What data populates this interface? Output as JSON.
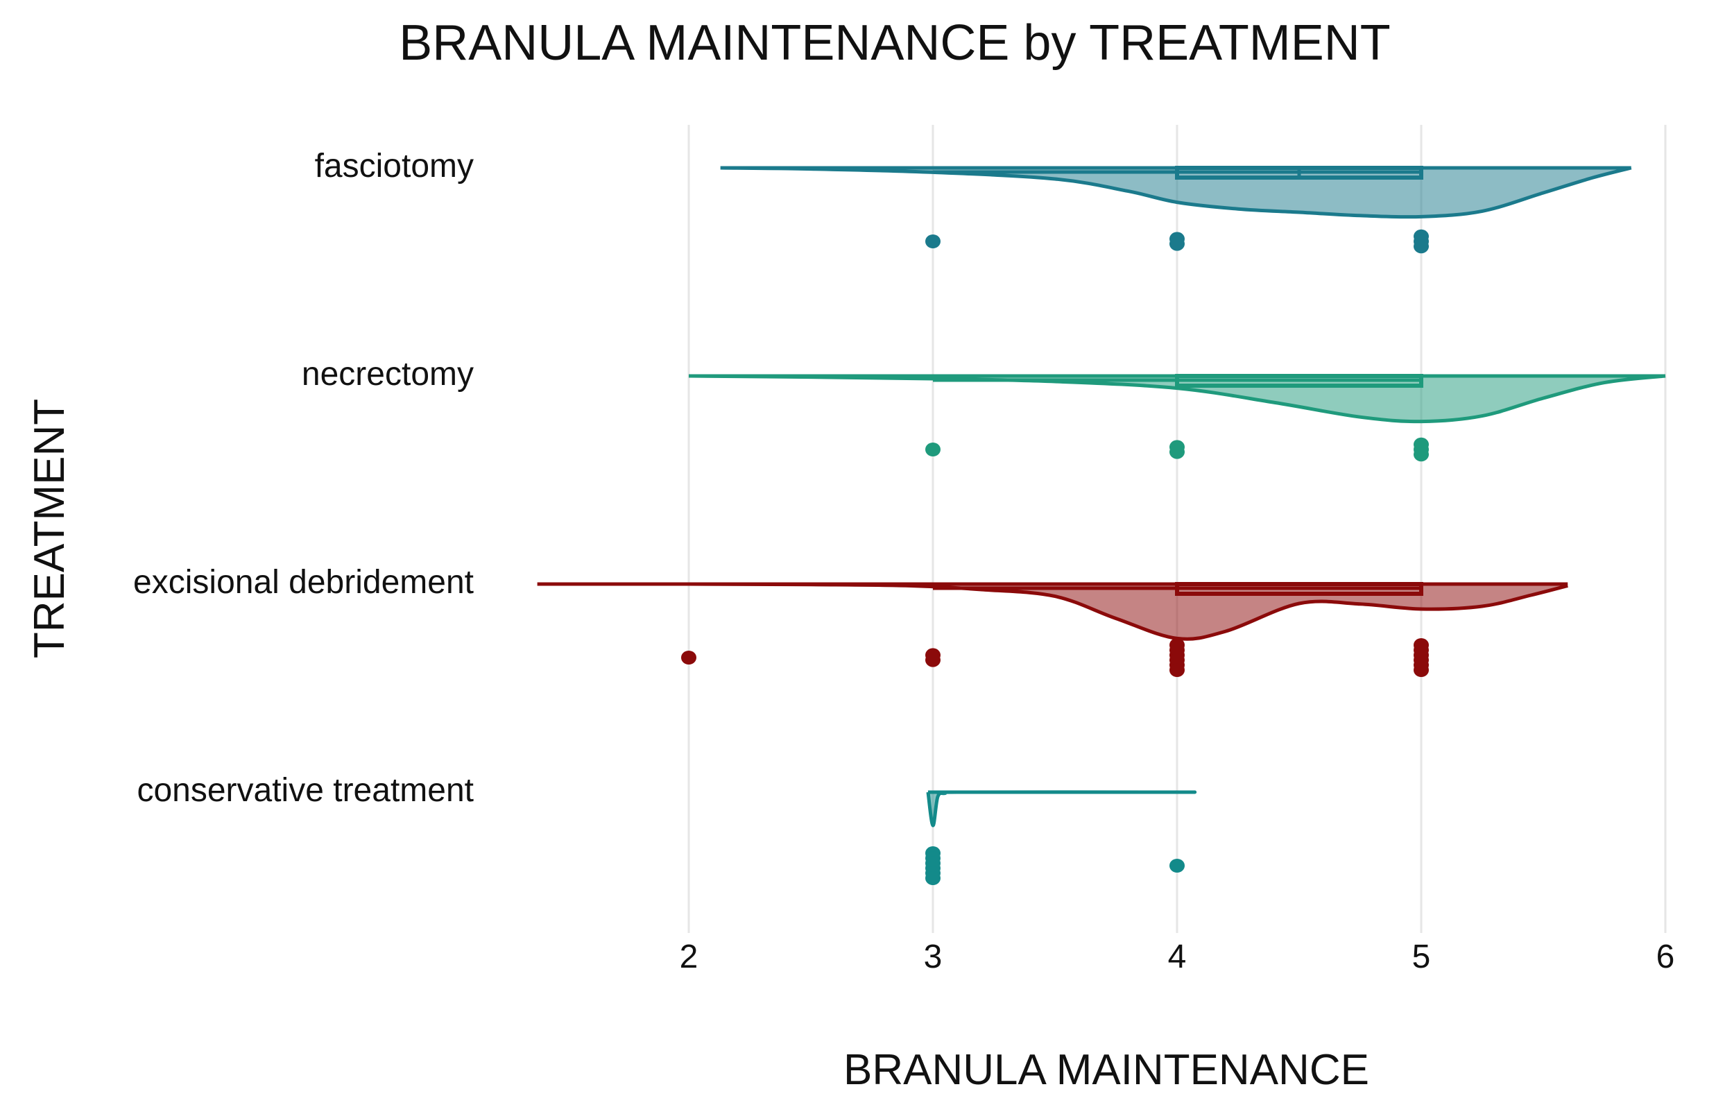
{
  "chart_data": {
    "type": "raincloud",
    "title": "BRANULA MAINTENANCE by TREATMENT",
    "xlabel": "BRANULA MAINTENANCE",
    "ylabel": "TREATMENT",
    "xlim": [
      2,
      6
    ],
    "xticks": [
      2,
      3,
      4,
      5,
      6
    ],
    "grid": true,
    "categories": [
      "fasciotomy",
      "necrectomy",
      "excisional debridement",
      "conservative treatment"
    ],
    "series": [
      {
        "name": "fasciotomy",
        "color": "#1b7a8c",
        "density": [
          [
            2.13,
            0.0
          ],
          [
            2.5,
            0.02
          ],
          [
            3.0,
            0.08
          ],
          [
            3.5,
            0.2
          ],
          [
            3.8,
            0.42
          ],
          [
            4.0,
            0.62
          ],
          [
            4.25,
            0.74
          ],
          [
            4.5,
            0.8
          ],
          [
            4.75,
            0.86
          ],
          [
            5.0,
            0.88
          ],
          [
            5.25,
            0.78
          ],
          [
            5.5,
            0.45
          ],
          [
            5.7,
            0.18
          ],
          [
            5.86,
            0.0
          ]
        ],
        "box": {
          "whisker_low": 3,
          "q1": 4,
          "median": 4.5,
          "q3": 5,
          "whisker_high": 5
        },
        "points": [
          {
            "value": 3,
            "count": 1
          },
          {
            "value": 4,
            "count": 2
          },
          {
            "value": 5,
            "count": 3
          }
        ]
      },
      {
        "name": "necrectomy",
        "color": "#1f9a7c",
        "density": [
          [
            2.0,
            0.0
          ],
          [
            2.5,
            0.02
          ],
          [
            3.0,
            0.05
          ],
          [
            3.5,
            0.1
          ],
          [
            4.0,
            0.22
          ],
          [
            4.4,
            0.48
          ],
          [
            4.75,
            0.74
          ],
          [
            5.0,
            0.82
          ],
          [
            5.25,
            0.72
          ],
          [
            5.5,
            0.4
          ],
          [
            5.75,
            0.12
          ],
          [
            6.0,
            0.0
          ]
        ],
        "box": {
          "whisker_low": 3,
          "q1": 4,
          "median": 5,
          "q3": 5,
          "whisker_high": 5
        },
        "points": [
          {
            "value": 3,
            "count": 1
          },
          {
            "value": 4,
            "count": 2
          },
          {
            "value": 5,
            "count": 3
          }
        ]
      },
      {
        "name": "excisional debridement",
        "color": "#8b0a0a",
        "density": [
          [
            1.38,
            0.0
          ],
          [
            2.0,
            0.0
          ],
          [
            2.5,
            0.01
          ],
          [
            2.9,
            0.03
          ],
          [
            3.2,
            0.1
          ],
          [
            3.5,
            0.22
          ],
          [
            3.75,
            0.62
          ],
          [
            4.0,
            0.98
          ],
          [
            4.2,
            0.85
          ],
          [
            4.5,
            0.35
          ],
          [
            4.75,
            0.36
          ],
          [
            5.0,
            0.45
          ],
          [
            5.25,
            0.4
          ],
          [
            5.45,
            0.2
          ],
          [
            5.6,
            0.03
          ]
        ],
        "box": {
          "whisker_low": 3,
          "q1": 4,
          "median": 5,
          "q3": 5,
          "whisker_high": 5
        },
        "points": [
          {
            "value": 2,
            "count": 1
          },
          {
            "value": 3,
            "count": 2
          },
          {
            "value": 4,
            "count": 6
          },
          {
            "value": 5,
            "count": 6
          }
        ]
      },
      {
        "name": "conservative treatment",
        "color": "#138a8a",
        "density": [
          [
            2.98,
            0.0
          ],
          [
            3.0,
            0.6
          ],
          [
            3.02,
            0.08
          ],
          [
            3.05,
            0.02
          ],
          [
            3.1,
            0.0
          ],
          [
            4.0,
            0.0
          ],
          [
            4.02,
            0.0
          ]
        ],
        "box": null,
        "points": [
          {
            "value": 3,
            "count": 6
          },
          {
            "value": 4,
            "count": 1
          }
        ]
      }
    ]
  }
}
